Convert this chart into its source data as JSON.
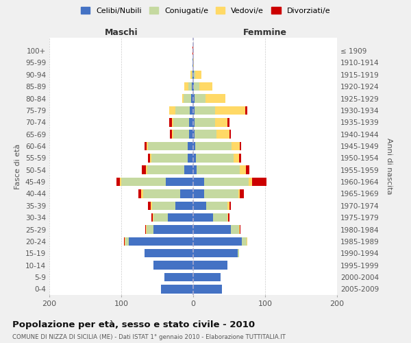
{
  "age_groups": [
    "0-4",
    "5-9",
    "10-14",
    "15-19",
    "20-24",
    "25-29",
    "30-34",
    "35-39",
    "40-44",
    "45-49",
    "50-54",
    "55-59",
    "60-64",
    "65-69",
    "70-74",
    "75-79",
    "80-84",
    "85-89",
    "90-94",
    "95-99",
    "100+"
  ],
  "birth_years": [
    "2005-2009",
    "2000-2004",
    "1995-1999",
    "1990-1994",
    "1985-1989",
    "1980-1984",
    "1975-1979",
    "1970-1974",
    "1965-1969",
    "1960-1964",
    "1955-1959",
    "1950-1954",
    "1945-1949",
    "1940-1944",
    "1935-1939",
    "1930-1934",
    "1925-1929",
    "1920-1924",
    "1915-1919",
    "1910-1914",
    "≤ 1909"
  ],
  "maschi": {
    "celibi": [
      45,
      40,
      55,
      68,
      90,
      55,
      35,
      25,
      18,
      38,
      12,
      8,
      8,
      6,
      6,
      5,
      3,
      2,
      1,
      1,
      0
    ],
    "coniugati": [
      0,
      0,
      0,
      0,
      4,
      10,
      20,
      32,
      52,
      62,
      52,
      50,
      55,
      22,
      22,
      20,
      10,
      5,
      1,
      0,
      0
    ],
    "vedovi": [
      0,
      0,
      0,
      0,
      1,
      1,
      1,
      2,
      2,
      2,
      2,
      2,
      2,
      2,
      2,
      8,
      2,
      5,
      2,
      0,
      0
    ],
    "divorziati": [
      0,
      0,
      0,
      0,
      1,
      1,
      2,
      4,
      4,
      5,
      5,
      3,
      3,
      2,
      3,
      0,
      0,
      0,
      0,
      0,
      1
    ]
  },
  "femmine": {
    "nubili": [
      40,
      38,
      48,
      62,
      68,
      52,
      28,
      18,
      15,
      15,
      5,
      4,
      3,
      2,
      2,
      2,
      2,
      1,
      1,
      0,
      0
    ],
    "coniugate": [
      0,
      0,
      0,
      2,
      6,
      12,
      20,
      30,
      48,
      62,
      60,
      52,
      50,
      30,
      28,
      28,
      15,
      8,
      2,
      0,
      0
    ],
    "vedove": [
      0,
      0,
      0,
      0,
      1,
      1,
      1,
      2,
      2,
      5,
      8,
      8,
      12,
      18,
      18,
      42,
      28,
      18,
      8,
      1,
      0
    ],
    "divorziate": [
      0,
      0,
      0,
      0,
      0,
      1,
      1,
      2,
      5,
      20,
      5,
      3,
      2,
      2,
      2,
      3,
      0,
      0,
      0,
      0,
      0
    ]
  },
  "colors": {
    "celibi": "#4472C4",
    "coniugati": "#c5d9a0",
    "vedovi": "#FFD966",
    "divorziati": "#CC0000"
  },
  "xlim": [
    -200,
    200
  ],
  "title": "Popolazione per età, sesso e stato civile - 2010",
  "subtitle": "COMUNE DI NIZZA DI SICILIA (ME) - Dati ISTAT 1° gennaio 2010 - Elaborazione TUTTITALIA.IT",
  "ylabel_left": "Fasce di età",
  "ylabel_right": "Anni di nascita",
  "xlabel_maschi": "Maschi",
  "xlabel_femmine": "Femmine",
  "legend_labels": [
    "Celibi/Nubili",
    "Coniugati/e",
    "Vedovi/e",
    "Divorziati/e"
  ],
  "background_color": "#f0f0f0",
  "plot_bg_color": "#ffffff"
}
